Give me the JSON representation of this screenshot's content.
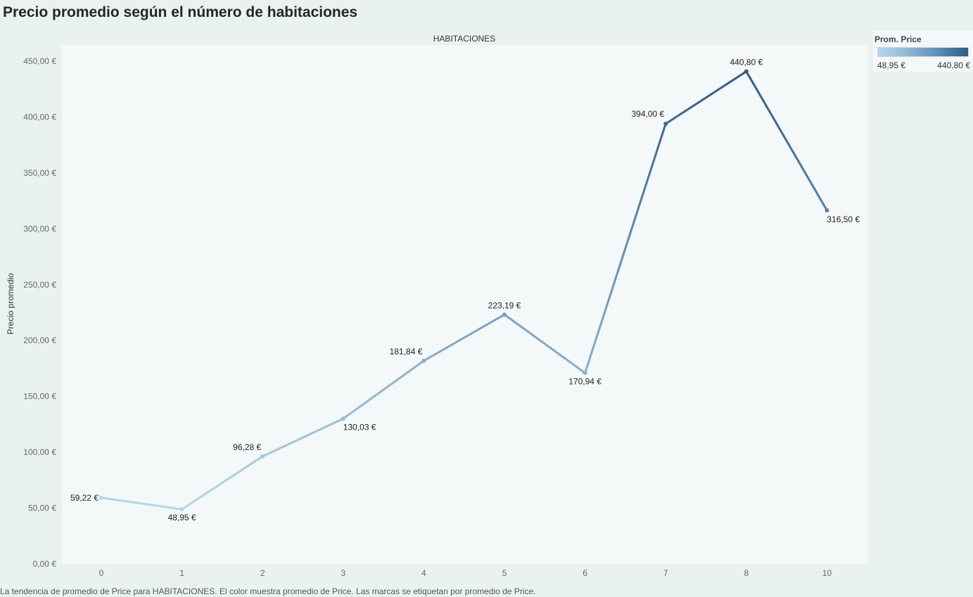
{
  "title": "Precio promedio según el número de habitaciones",
  "caption": "La tendencia de promedio de Price para HABITACIONES. El color muestra promedio de Price. Las marcas se etiquetan por promedio de Price.",
  "legend": {
    "title": "Prom. Price",
    "min_label": "48,95 €",
    "max_label": "440,80 €",
    "color_low": "#b4d7ee",
    "color_high": "#2f5a88"
  },
  "chart_data": {
    "type": "line",
    "xlabel": "HABITACIONES",
    "ylabel": "Precio promedio",
    "categories": [
      "0",
      "1",
      "2",
      "3",
      "4",
      "5",
      "6",
      "7",
      "8",
      "10"
    ],
    "values": [
      59.22,
      48.95,
      96.28,
      130.03,
      181.84,
      223.19,
      170.94,
      394.0,
      440.8,
      316.5
    ],
    "data_labels": [
      "59,22 €",
      "48,95 €",
      "96,28 €",
      "130,03 €",
      "181,84 €",
      "223,19 €",
      "170,94 €",
      "394,00 €",
      "440,80 €",
      "316,50 €"
    ],
    "ylim": [
      0,
      450
    ],
    "yticks": [
      0,
      50,
      100,
      150,
      200,
      250,
      300,
      350,
      400,
      450
    ],
    "ytick_labels": [
      "0,00 €",
      "50,00 €",
      "100,00 €",
      "150,00 €",
      "200,00 €",
      "250,00 €",
      "300,00 €",
      "350,00 €",
      "400,00 €",
      "450,00 €"
    ],
    "grid": false,
    "legend_position": "top-right"
  }
}
